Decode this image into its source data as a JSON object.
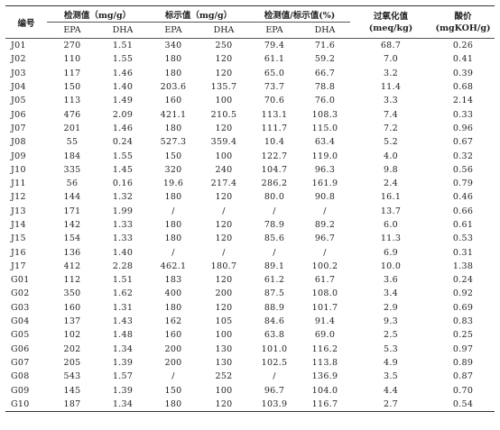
{
  "headers": {
    "id": "编号",
    "measured": "检测值（mg/g）",
    "labeled": "标示值（mg/g）",
    "ratio": "检测值/标示值(%)",
    "peroxide_line1": "过氧化值",
    "peroxide_line2": "(meq/kg)",
    "acid_line1": "酸价",
    "acid_line2": "(mgKOH/g)",
    "sub": [
      "EPA",
      "DHA",
      "EPA",
      "DHA",
      "EPA",
      "DHA"
    ]
  },
  "rows": [
    [
      "J01",
      "270",
      "1.51",
      "340",
      "250",
      "79.4",
      "71.6",
      "68.7",
      "0.26"
    ],
    [
      "J02",
      "110",
      "1.55",
      "180",
      "120",
      "61.1",
      "59.2",
      "7.0",
      "0.41"
    ],
    [
      "J03",
      "117",
      "1.46",
      "180",
      "120",
      "65.0",
      "66.7",
      "3.2",
      "0.39"
    ],
    [
      "J04",
      "150",
      "1.40",
      "203.6",
      "135.7",
      "73.7",
      "78.8",
      "11.4",
      "0.68"
    ],
    [
      "J05",
      "113",
      "1.49",
      "160",
      "100",
      "70.6",
      "76.0",
      "3.3",
      "2.14"
    ],
    [
      "J06",
      "476",
      "2.09",
      "421.1",
      "210.5",
      "113.1",
      "108.3",
      "7.4",
      "0.33"
    ],
    [
      "J07",
      "201",
      "1.46",
      "180",
      "120",
      "111.7",
      "115.0",
      "7.2",
      "0.96"
    ],
    [
      "J08",
      "55",
      "0.24",
      "527.3",
      "359.4",
      "10.4",
      "63.4",
      "5.2",
      "0.67"
    ],
    [
      "J09",
      "184",
      "1.55",
      "150",
      "100",
      "122.7",
      "119.0",
      "4.0",
      "0.32"
    ],
    [
      "J10",
      "335",
      "1.45",
      "320",
      "240",
      "104.7",
      "96.3",
      "9.8",
      "0.56"
    ],
    [
      "J11",
      "56",
      "0.16",
      "19.6",
      "217.4",
      "286.2",
      "161.9",
      "2.4",
      "0.79"
    ],
    [
      "J12",
      "144",
      "1.32",
      "180",
      "120",
      "80.0",
      "90.8",
      "16.1",
      "0.46"
    ],
    [
      "J13",
      "171",
      "1.99",
      "/",
      "/",
      "/",
      "/",
      "13.7",
      "0.66"
    ],
    [
      "J14",
      "142",
      "1.33",
      "180",
      "120",
      "78.9",
      "89.2",
      "6.0",
      "0.61"
    ],
    [
      "J15",
      "154",
      "1.33",
      "180",
      "120",
      "85.6",
      "96.7",
      "11.3",
      "0.53"
    ],
    [
      "J16",
      "136",
      "1.40",
      "/",
      "/",
      "/",
      "/",
      "6.9",
      "0.31"
    ],
    [
      "J17",
      "412",
      "2.28",
      "462.1",
      "180.7",
      "89.1",
      "100.2",
      "10.0",
      "1.38"
    ],
    [
      "G01",
      "112",
      "1.51",
      "183",
      "120",
      "61.2",
      "61.7",
      "3.6",
      "0.24"
    ],
    [
      "G02",
      "350",
      "1.62",
      "400",
      "200",
      "87.5",
      "108.0",
      "3.4",
      "0.92"
    ],
    [
      "G03",
      "160",
      "1.31",
      "180",
      "120",
      "88.9",
      "101.7",
      "2.9",
      "0.69"
    ],
    [
      "G04",
      "137",
      "1.43",
      "162",
      "105",
      "84.6",
      "91.4",
      "9.3",
      "0.83"
    ],
    [
      "G05",
      "102",
      "1.48",
      "160",
      "100",
      "63.8",
      "69.0",
      "2.5",
      "0.25"
    ],
    [
      "G06",
      "202",
      "1.34",
      "200",
      "130",
      "101.0",
      "116.2",
      "5.3",
      "0.97"
    ],
    [
      "G07",
      "205",
      "1.39",
      "200",
      "130",
      "102.5",
      "113.8",
      "4.9",
      "0.89"
    ],
    [
      "G08",
      "543",
      "1.57",
      "/",
      "252",
      "/",
      "136.9",
      "3.5",
      "0.87"
    ],
    [
      "G09",
      "145",
      "1.39",
      "150",
      "100",
      "96.7",
      "104.0",
      "4.4",
      "0.70"
    ],
    [
      "G10",
      "187",
      "1.34",
      "180",
      "120",
      "103.9",
      "116.7",
      "2.7",
      "0.54"
    ]
  ]
}
